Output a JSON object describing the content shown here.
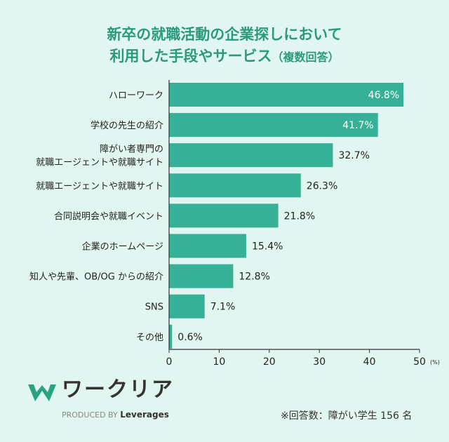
{
  "chart_data": {
    "type": "bar",
    "orientation": "horizontal",
    "title_line1": "新卒の就職活動の企業探しにおいて",
    "title_line2": "利用した手段やサービス",
    "title_suffix": "（複数回答）",
    "categories": [
      [
        "ハローワーク"
      ],
      [
        "学校の先生の紹介"
      ],
      [
        "障がい者専門の",
        "就職エージェントや就職サイト"
      ],
      [
        "就職エージェントや就職サイト"
      ],
      [
        "合同説明会や就職イベント"
      ],
      [
        "企業のホームページ"
      ],
      [
        "知人や先輩、OB/OG からの紹介"
      ],
      [
        "SNS"
      ],
      [
        "その他"
      ]
    ],
    "values": [
      46.8,
      41.7,
      32.7,
      26.3,
      21.8,
      15.4,
      12.8,
      7.1,
      0.6
    ],
    "value_labels": [
      "46.8%",
      "41.7%",
      "32.7%",
      "26.3%",
      "21.8%",
      "15.4%",
      "12.8%",
      "7.1%",
      "0.6%"
    ],
    "xlim": [
      0,
      50
    ],
    "xticks": [
      "0",
      "10",
      "20",
      "30",
      "40",
      "50"
    ],
    "xunit": "(%)",
    "grid": false,
    "bar_color": "#36b096",
    "title_color": "#2b9a7c"
  },
  "footer": {
    "logo_text": "ワークリア",
    "produced_by": "PRODUCED BY",
    "produced_brand": "Leverages",
    "note": "※回答数：障がい学生 156 名"
  }
}
